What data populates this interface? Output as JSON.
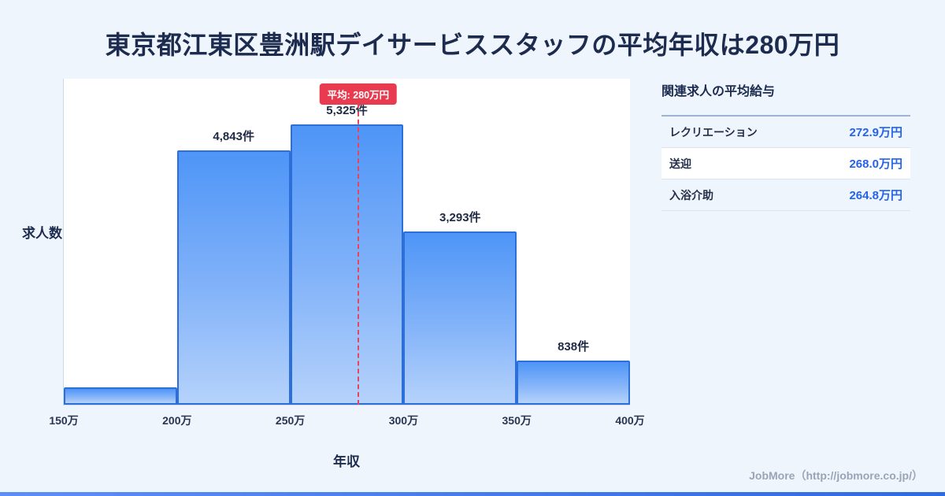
{
  "page": {
    "title": "東京都江東区豊洲駅デイサービススタッフの平均年収は280万円",
    "footer": "JobMore（http://jobmore.co.jp/）"
  },
  "colors": {
    "accent_red": "#e83b50",
    "bar_blue": "#4e95f7",
    "bar_border_blue": "#2d6fd9",
    "value_blue": "#2563eb",
    "title_navy": "#1c2b4e",
    "background": "#eef5fd"
  },
  "chart_data": {
    "type": "bar",
    "title": "東京都江東区豊洲駅デイサービススタッフの平均年収は280万円",
    "xlabel": "年収",
    "ylabel": "求人数",
    "x_ticks": [
      "150万",
      "200万",
      "250万",
      "300万",
      "350万",
      "400万"
    ],
    "x_range": [
      150,
      400
    ],
    "ylim": [
      0,
      6200
    ],
    "bins": [
      {
        "x0": 150,
        "x1": 200,
        "count": 330,
        "label": ""
      },
      {
        "x0": 200,
        "x1": 250,
        "count": 4843,
        "label": "4,843件"
      },
      {
        "x0": 250,
        "x1": 300,
        "count": 5325,
        "label": "5,325件"
      },
      {
        "x0": 300,
        "x1": 350,
        "count": 3293,
        "label": "3,293件"
      },
      {
        "x0": 350,
        "x1": 400,
        "count": 838,
        "label": "838件"
      }
    ],
    "average": {
      "value": 280,
      "label": "平均: 280万円"
    },
    "legend": null,
    "grid": false
  },
  "side_panel": {
    "title": "関連求人の平均給与",
    "rows": [
      {
        "label": "レクリエーション",
        "value": "272.9万円"
      },
      {
        "label": "送迎",
        "value": "268.0万円"
      },
      {
        "label": "入浴介助",
        "value": "264.8万円"
      }
    ]
  }
}
